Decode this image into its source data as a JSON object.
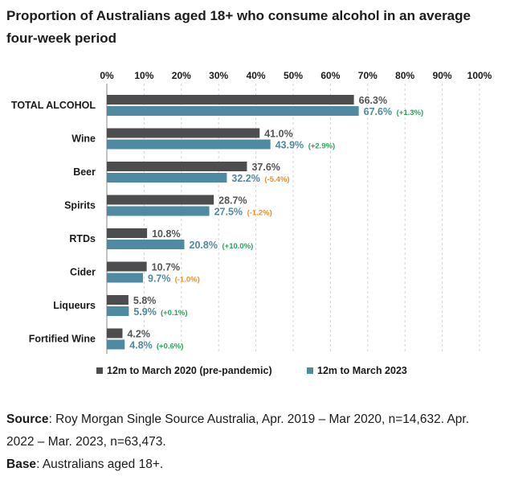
{
  "title": "Proportion of Australians aged 18+ who consume alcohol in an average four-week period",
  "chart_data": {
    "type": "bar",
    "orientation": "horizontal",
    "categories": [
      "TOTAL ALCOHOL",
      "Wine",
      "Beer",
      "Spirits",
      "RTDs",
      "Cider",
      "Liqueurs",
      "Fortified Wine"
    ],
    "x_ticks": [
      "0%",
      "10%",
      "20%",
      "30%",
      "40%",
      "50%",
      "60%",
      "70%",
      "80%",
      "90%",
      "100%"
    ],
    "xlim": [
      0,
      100
    ],
    "grid": true,
    "legend_position": "bottom",
    "series": [
      {
        "name": "12m to March 2020 (pre-pandemic)",
        "color": "#4d4d4f",
        "values": [
          66.3,
          41.0,
          37.6,
          28.7,
          10.8,
          10.7,
          5.8,
          4.2
        ],
        "labels": [
          "66.3%",
          "41.0%",
          "37.6%",
          "28.7%",
          "10.8%",
          "10.7%",
          "5.8%",
          "4.2%"
        ]
      },
      {
        "name": "12m to March 2023",
        "color": "#4f8aa3",
        "values": [
          67.6,
          43.9,
          32.2,
          27.5,
          20.8,
          9.7,
          5.9,
          4.8
        ],
        "labels": [
          "67.6%",
          "43.9%",
          "32.2%",
          "27.5%",
          "20.8%",
          "9.7%",
          "5.9%",
          "4.8%"
        ],
        "changes": [
          "(+1.3%)",
          "(+2.9%)",
          "(-5.4%)",
          "(-1.2%)",
          "(+10.0%)",
          "(-1.0%)",
          "(+0.1%)",
          "(+0.6%)"
        ]
      }
    ],
    "colors": {
      "positive_change": "#2aa55a",
      "negative_change": "#f28c28"
    }
  },
  "footer": {
    "source_label": "Source",
    "source_text": ": Roy Morgan Single Source Australia, Apr. 2019 – Mar 2020, n=14,632. Apr. 2022 – Mar. 2023, n=63,473.",
    "base_label": "Base",
    "base_text": ": Australians aged 18+."
  }
}
